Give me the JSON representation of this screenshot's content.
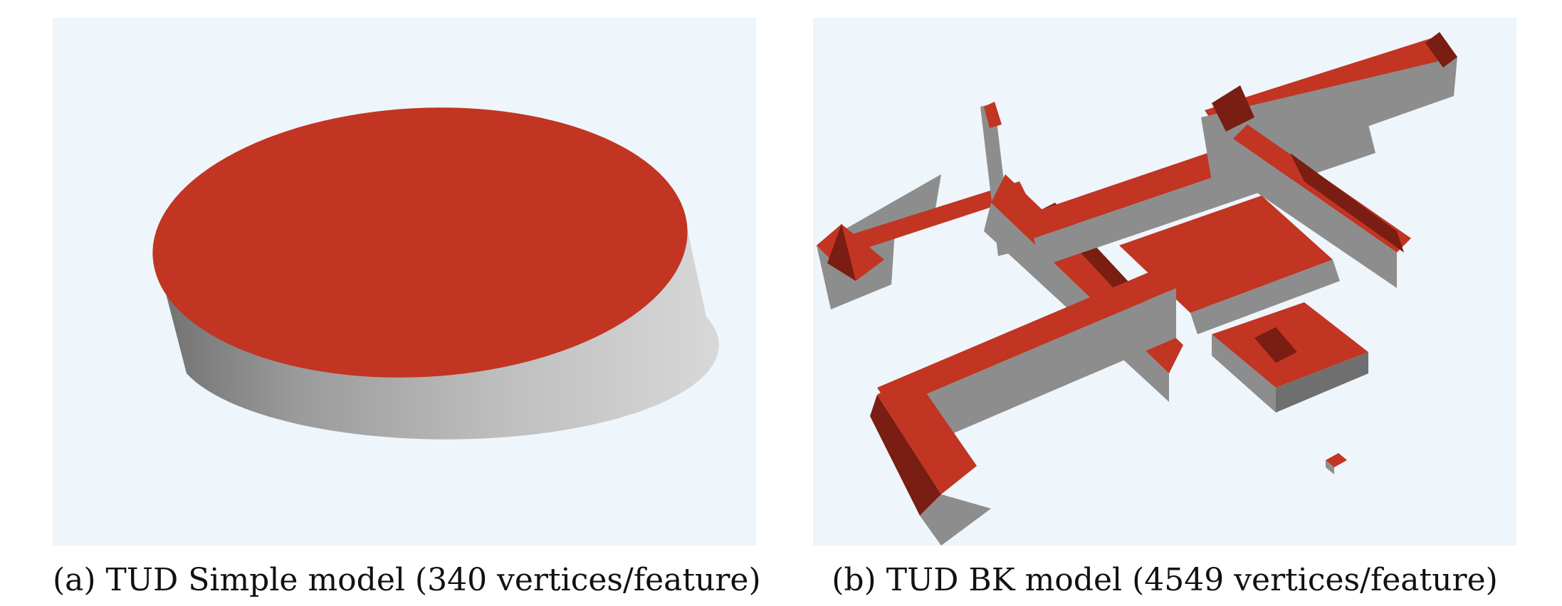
{
  "colors": {
    "background": "#eef5fb",
    "roof": "#c13522",
    "roof_dark": "#7a1d12",
    "wall_light": "#cfcfcf",
    "wall_mid": "#8d8d8d",
    "wall_dark": "#6f6f6f"
  },
  "figures": [
    {
      "caption": "(a) TUD Simple model (340 vertices/feature)"
    },
    {
      "caption": "(b) TUD BK model (4549 vertices/feature)"
    }
  ]
}
